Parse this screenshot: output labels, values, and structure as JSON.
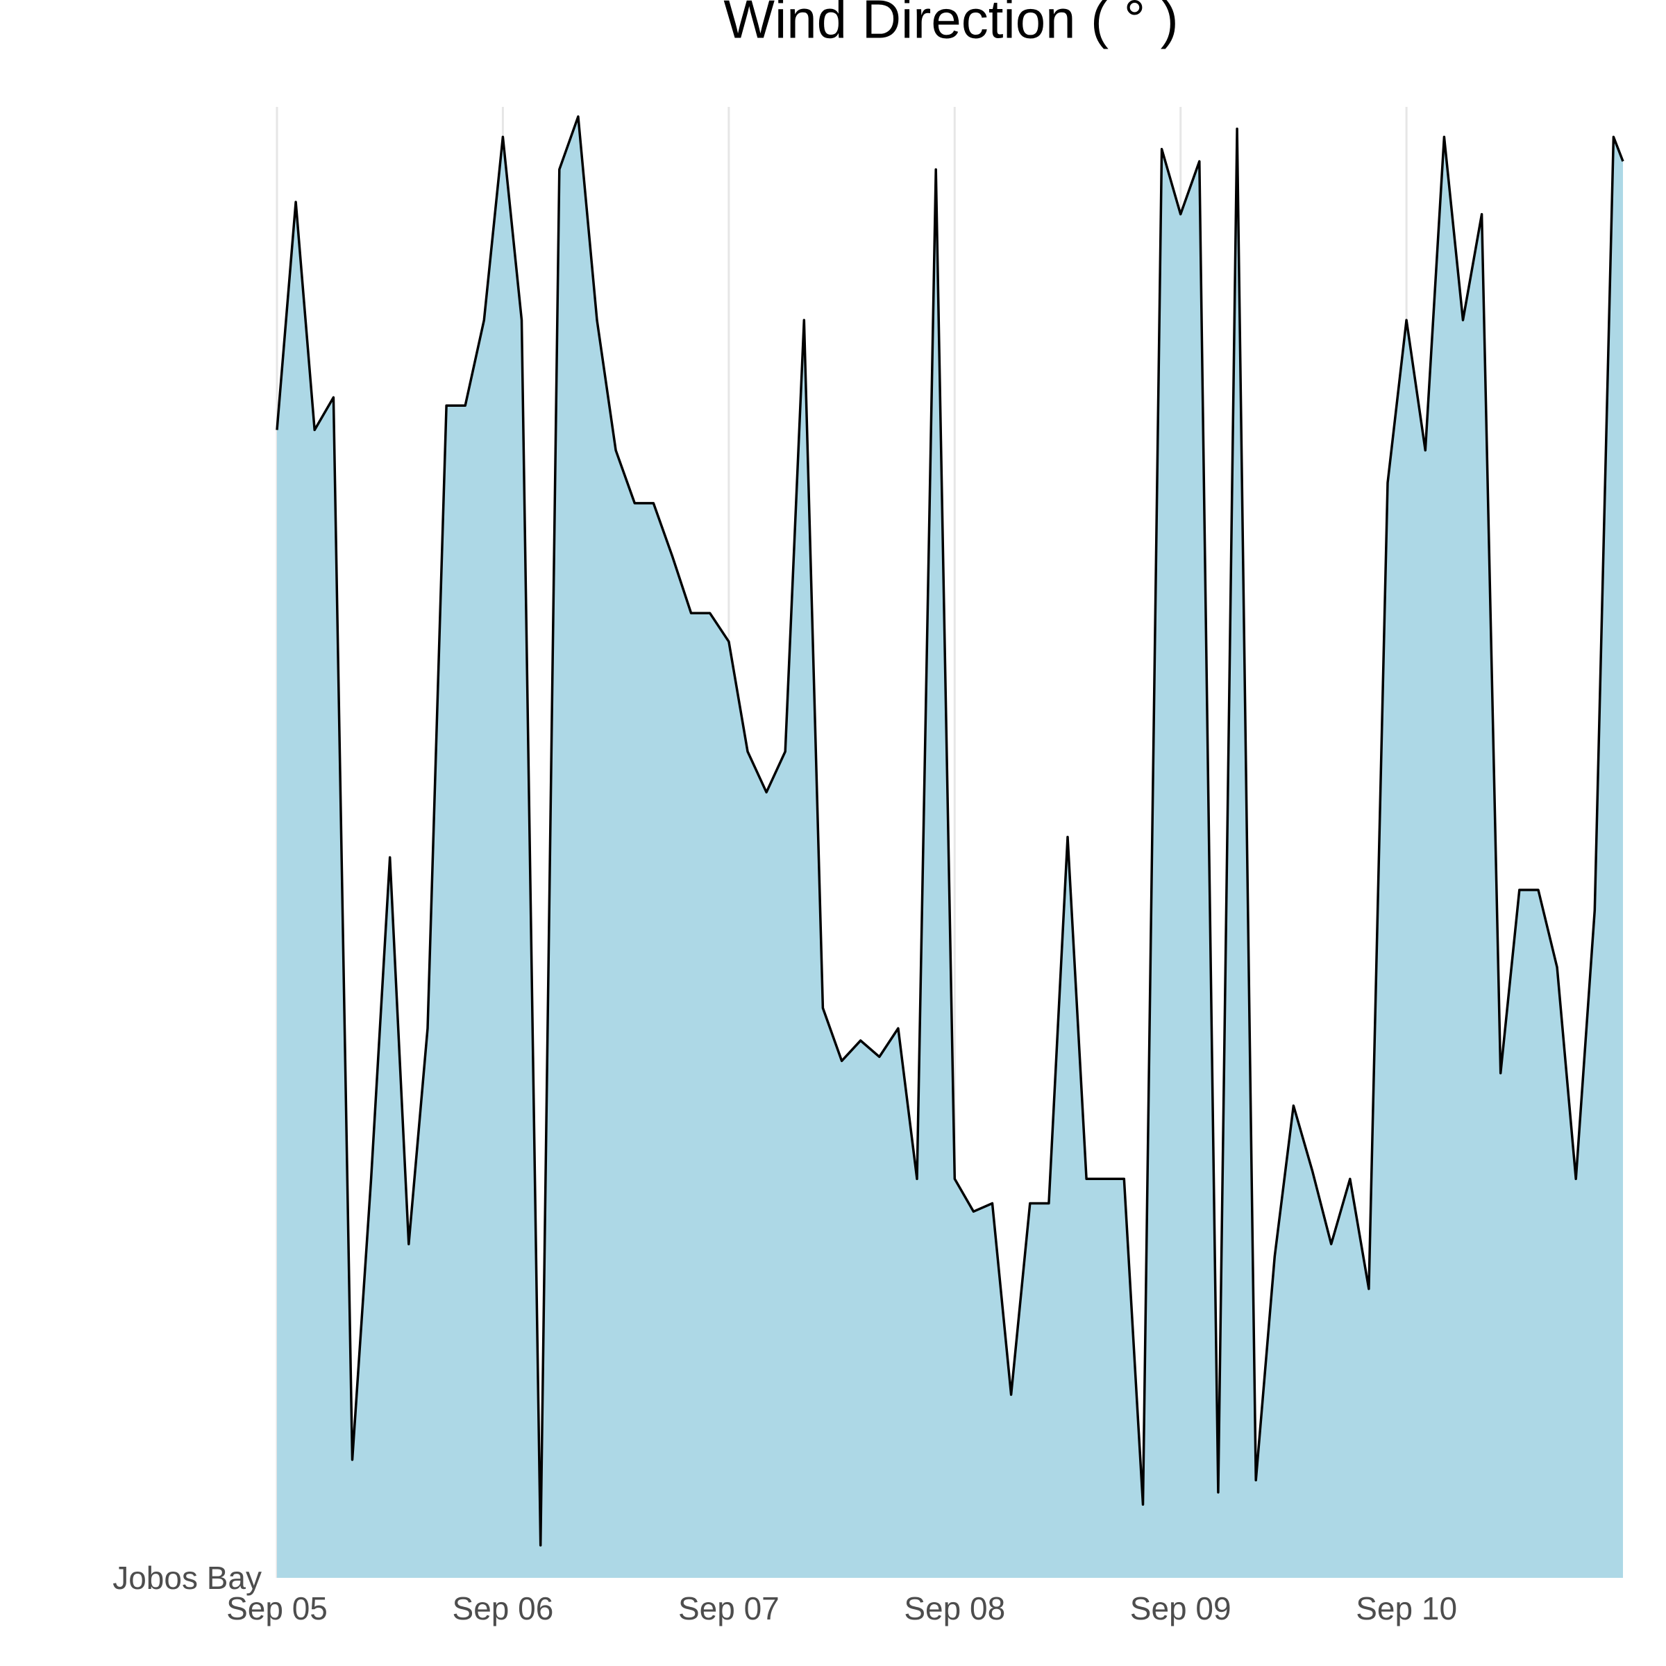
{
  "chart_data": {
    "type": "area",
    "title": "Wind Direction ( ° )",
    "x": [
      0,
      2,
      4,
      6,
      8,
      10,
      12,
      14,
      16,
      18,
      20,
      22,
      24,
      26,
      28,
      30,
      32,
      34,
      36,
      38,
      40,
      42,
      44,
      46,
      48,
      50,
      52,
      54,
      56,
      58,
      60,
      62,
      64,
      66,
      68,
      70,
      72,
      74,
      76,
      78,
      80,
      82,
      84,
      86,
      88,
      90,
      92,
      94,
      96,
      98,
      100,
      102,
      104,
      106,
      108,
      110,
      112,
      114,
      116,
      118,
      120,
      122,
      124,
      126,
      128,
      130,
      132,
      134,
      136,
      138,
      140,
      142,
      143
    ],
    "series": [
      {
        "name": "Jobos Bay",
        "color": "#add8e6",
        "line_color": "#000000",
        "values": [
          282,
          338,
          282,
          290,
          29,
          98,
          177,
          82,
          135,
          288,
          288,
          309,
          354,
          309,
          8,
          346,
          359,
          309,
          277,
          264,
          264,
          251,
          237,
          237,
          230,
          203,
          193,
          203,
          309,
          140,
          127,
          132,
          128,
          135,
          98,
          346,
          98,
          90,
          92,
          45,
          92,
          92,
          182,
          98,
          98,
          98,
          18,
          351,
          335,
          348,
          21,
          356,
          24,
          79,
          116,
          100,
          82,
          98,
          71,
          269,
          309,
          277,
          354,
          309,
          335,
          124,
          169,
          169,
          150,
          98,
          164,
          354,
          348
        ]
      }
    ],
    "xlim": [
      0,
      143
    ],
    "xticks": [
      {
        "value": 0,
        "label": "Sep 05"
      },
      {
        "value": 24,
        "label": "Sep 06"
      },
      {
        "value": 48,
        "label": "Sep 07"
      },
      {
        "value": 72,
        "label": "Sep 08"
      },
      {
        "value": 96,
        "label": "Sep 09"
      },
      {
        "value": 120,
        "label": "Sep 10"
      }
    ],
    "ylim": [
      0,
      360
    ],
    "grid": true
  }
}
